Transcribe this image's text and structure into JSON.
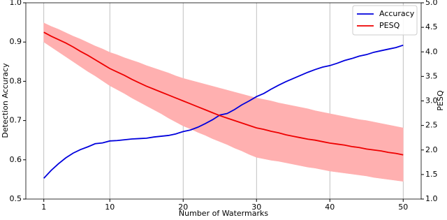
{
  "chart_data": {
    "type": "line",
    "x_label": "Number of Watermarks",
    "y_label": "Detection Accuracy",
    "y2_label": "PESQ",
    "x": [
      1,
      2,
      3,
      4,
      5,
      6,
      7,
      8,
      9,
      10,
      11,
      12,
      13,
      14,
      15,
      16,
      17,
      18,
      19,
      20,
      21,
      22,
      23,
      24,
      25,
      26,
      27,
      28,
      29,
      30,
      31,
      32,
      33,
      34,
      35,
      36,
      37,
      38,
      39,
      40,
      41,
      42,
      43,
      44,
      45,
      46,
      47,
      48,
      49,
      50
    ],
    "xlim": [
      -1.45,
      52.45
    ],
    "xticks": [
      1,
      10,
      20,
      30,
      40,
      50
    ],
    "ylim": [
      0.5,
      1.0
    ],
    "yticks": [
      0.5,
      0.6,
      0.7,
      0.8,
      0.9,
      {
        "value": 1.0,
        "label": "1.0"
      }
    ],
    "y2lim": [
      1.0,
      5.0
    ],
    "y2ticks": [
      {
        "value": 1.0,
        "label": "1.0"
      },
      1.5,
      {
        "value": 2.0,
        "label": "2.0"
      },
      2.5,
      {
        "value": 3.0,
        "label": "3.0"
      },
      3.5,
      {
        "value": 4.0,
        "label": "4.0"
      },
      4.5,
      {
        "value": 5.0,
        "label": "5.0"
      }
    ],
    "grid": "x",
    "legend": "upper right",
    "series": [
      {
        "name": "Accuracy",
        "color": "#0000dd",
        "axis": "y",
        "values": [
          0.553,
          0.573,
          0.59,
          0.605,
          0.617,
          0.626,
          0.633,
          0.641,
          0.643,
          0.648,
          0.649,
          0.651,
          0.653,
          0.654,
          0.655,
          0.658,
          0.66,
          0.662,
          0.666,
          0.672,
          0.676,
          0.683,
          0.692,
          0.702,
          0.714,
          0.718,
          0.728,
          0.74,
          0.75,
          0.761,
          0.769,
          0.78,
          0.79,
          0.799,
          0.807,
          0.815,
          0.823,
          0.83,
          0.836,
          0.84,
          0.846,
          0.853,
          0.858,
          0.864,
          0.868,
          0.874,
          0.878,
          0.882,
          0.886,
          0.892
        ]
      },
      {
        "name": "PESQ",
        "color": "#ee0000",
        "band_color": "#ffb0b0",
        "axis": "y2",
        "values": [
          4.4,
          4.32,
          4.25,
          4.18,
          4.1,
          4.01,
          3.93,
          3.84,
          3.75,
          3.66,
          3.59,
          3.52,
          3.44,
          3.37,
          3.3,
          3.24,
          3.18,
          3.12,
          3.06,
          3.0,
          2.94,
          2.88,
          2.82,
          2.76,
          2.7,
          2.65,
          2.6,
          2.55,
          2.5,
          2.45,
          2.42,
          2.38,
          2.35,
          2.31,
          2.28,
          2.25,
          2.22,
          2.2,
          2.17,
          2.14,
          2.12,
          2.1,
          2.07,
          2.05,
          2.02,
          2.0,
          1.98,
          1.95,
          1.93,
          1.9
        ],
        "band": {
          "upper": [
            4.59,
            4.52,
            4.46,
            4.39,
            4.32,
            4.26,
            4.19,
            4.12,
            4.06,
            3.99,
            3.94,
            3.88,
            3.83,
            3.78,
            3.72,
            3.67,
            3.62,
            3.57,
            3.51,
            3.46,
            3.42,
            3.38,
            3.34,
            3.3,
            3.26,
            3.22,
            3.18,
            3.14,
            3.1,
            3.06,
            3.03,
            3.0,
            2.96,
            2.93,
            2.9,
            2.87,
            2.84,
            2.8,
            2.77,
            2.74,
            2.71,
            2.68,
            2.65,
            2.62,
            2.6,
            2.57,
            2.54,
            2.51,
            2.48,
            2.45
          ],
          "lower": [
            4.2,
            4.1,
            4.0,
            3.9,
            3.8,
            3.7,
            3.6,
            3.51,
            3.41,
            3.31,
            3.23,
            3.15,
            3.06,
            2.98,
            2.9,
            2.82,
            2.74,
            2.65,
            2.57,
            2.49,
            2.43,
            2.36,
            2.3,
            2.23,
            2.17,
            2.11,
            2.04,
            1.98,
            1.91,
            1.85,
            1.82,
            1.79,
            1.77,
            1.74,
            1.71,
            1.68,
            1.65,
            1.63,
            1.6,
            1.57,
            1.55,
            1.53,
            1.51,
            1.49,
            1.47,
            1.44,
            1.42,
            1.4,
            1.38,
            1.36
          ]
        }
      }
    ]
  }
}
